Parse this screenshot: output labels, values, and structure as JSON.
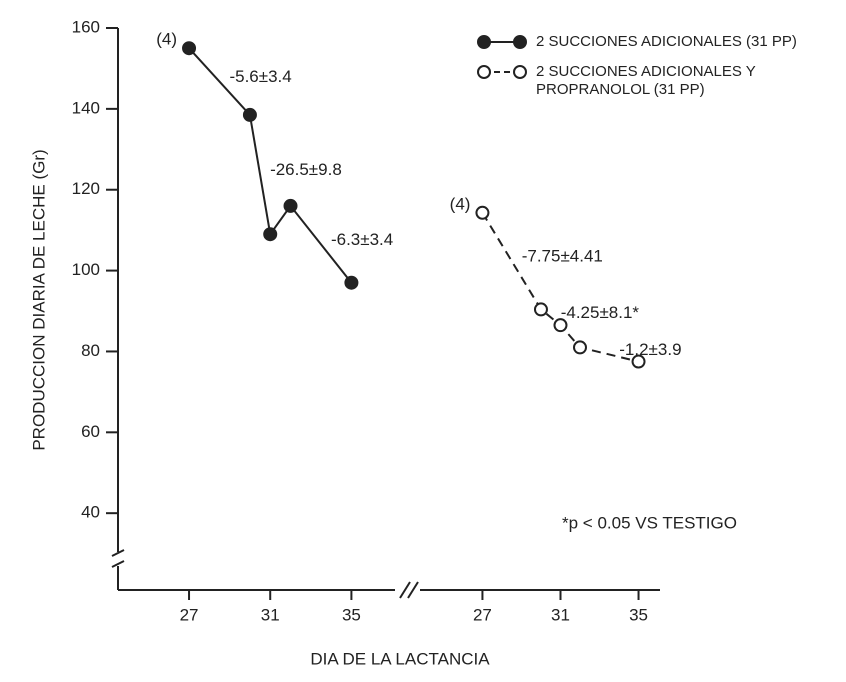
{
  "chart_data": {
    "type": "line",
    "ylabel": "PRODUCCION DIARIA DE LECHE (Gr)",
    "xlabel": "DIA DE LA LACTANCIA",
    "ylim": [
      21,
      160
    ],
    "yticks": [
      40,
      60,
      80,
      100,
      120,
      140,
      160
    ],
    "panels": [
      {
        "xlim": [
          23.5,
          37
        ],
        "xticks": [
          27,
          31,
          35
        ]
      },
      {
        "xlim": [
          23.8,
          36.1
        ],
        "xticks": [
          27,
          31,
          35
        ]
      }
    ],
    "series": [
      {
        "name": "2 SUCCIONES ADICIONALES (31 PP)",
        "color": "#222",
        "filled": true,
        "panel": 0,
        "x": [
          27,
          30,
          31,
          32,
          35
        ],
        "values": [
          155,
          138.5,
          109,
          116,
          97
        ],
        "n_label": "(4)",
        "segment_labels": [
          "-5.6±3.4",
          "-26.5±9.8",
          null,
          "-6.3±3.4"
        ]
      },
      {
        "name": "2 SUCCIONES ADICIONALES Y PROPRANOLOL (31 PP)",
        "color": "#222",
        "filled": false,
        "panel": 1,
        "x": [
          27,
          30,
          31,
          32,
          35
        ],
        "values": [
          114.3,
          90.4,
          86.5,
          81,
          77.5
        ],
        "n_label": "(4)",
        "segment_labels": [
          "-7.75±4.41",
          "-4.25±8.1*",
          null,
          "-1.2±3.9"
        ]
      }
    ],
    "annotation": "*p < 0.05 VS TESTIGO"
  }
}
